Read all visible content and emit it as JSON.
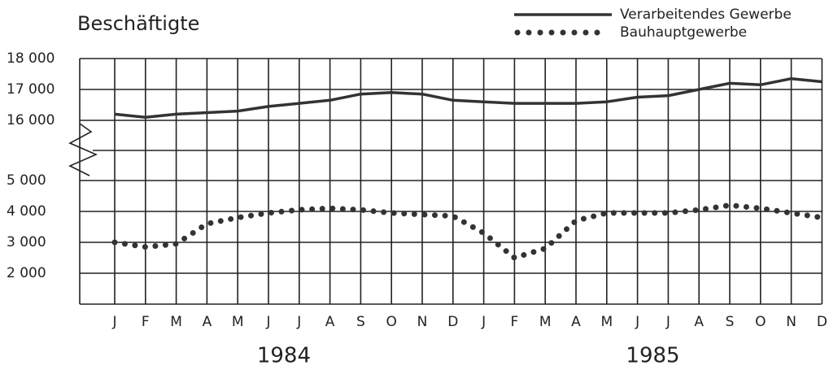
{
  "chart_data": {
    "type": "line",
    "title": "Beschäftigte",
    "categories": [
      "J",
      "F",
      "M",
      "A",
      "M",
      "J",
      "J",
      "A",
      "S",
      "O",
      "N",
      "D",
      "J",
      "F",
      "M",
      "A",
      "M",
      "J",
      "J",
      "A",
      "S",
      "O",
      "N",
      "D"
    ],
    "years": [
      "1984",
      "1985"
    ],
    "series": [
      {
        "name": "Verarbeitendes Gewerbe",
        "color": "#333333",
        "style": "solid",
        "values": [
          16200,
          16100,
          16200,
          16250,
          16300,
          16450,
          16550,
          16650,
          16850,
          16900,
          16850,
          16650,
          16600,
          16550,
          16550,
          16550,
          16600,
          16750,
          16800,
          17000,
          17200,
          17150,
          17350,
          17250
        ]
      },
      {
        "name": "Bauhauptgewerbe",
        "color": "#333333",
        "style": "dotted",
        "values": [
          3000,
          2850,
          2950,
          3600,
          3800,
          3950,
          4050,
          4100,
          4050,
          3950,
          3900,
          3850,
          3300,
          2500,
          2800,
          3700,
          3950,
          3950,
          3950,
          4050,
          4200,
          4100,
          3950,
          3800
        ]
      }
    ],
    "ylim": [
      2000,
      18000
    ],
    "axis_break": [
      5000,
      16000
    ],
    "yticks": [
      {
        "value": 18000,
        "label": "18 000"
      },
      {
        "value": 17000,
        "label": "17 000"
      },
      {
        "value": 16000,
        "label": "16 000"
      },
      {
        "value": 5000,
        "label": "5 000"
      },
      {
        "value": 4000,
        "label": "4 000"
      },
      {
        "value": 3000,
        "label": "3 000"
      },
      {
        "value": 2000,
        "label": "2 000"
      }
    ],
    "grid": true,
    "legend": "top-right"
  }
}
